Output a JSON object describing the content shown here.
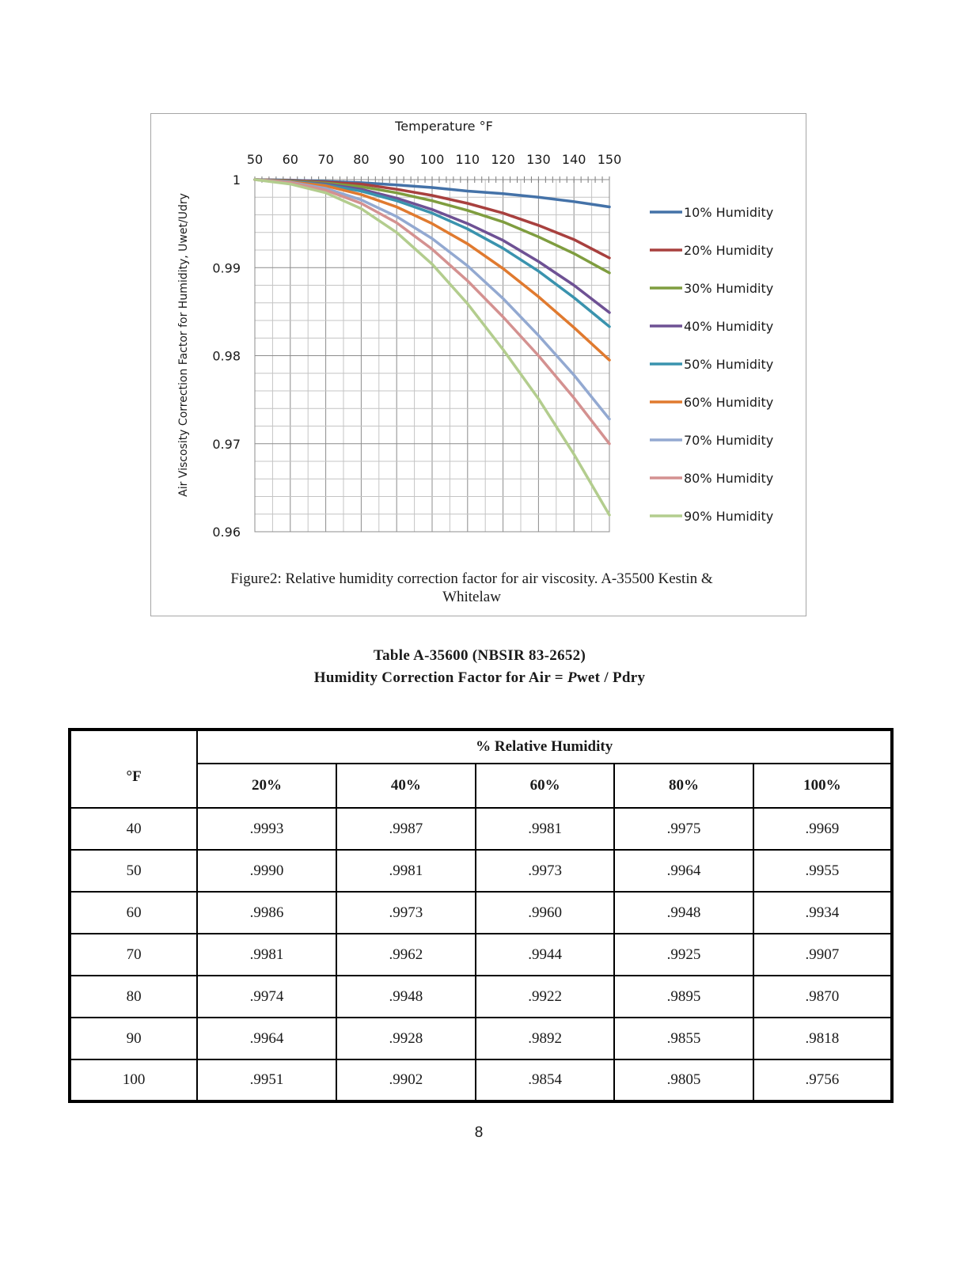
{
  "figure": {
    "caption_line1": "Figure2: Relative humidity correction factor for air viscosity.  A-35500 Kestin &",
    "caption_line2": "Whitelaw"
  },
  "chart_data": {
    "type": "line",
    "title": "",
    "xlabel": "Temperature °F",
    "ylabel": "Air Viscosity Correction Factor for Humidity, Uwet/Udry",
    "x_axis_position": "top",
    "xlim": [
      50,
      150
    ],
    "ylim": [
      0.96,
      1
    ],
    "x_ticks": [
      "50",
      "60",
      "70",
      "80",
      "90",
      "100",
      "110",
      "120",
      "130",
      "140",
      "150"
    ],
    "y_ticks": [
      "1",
      "0.99",
      "0.98",
      "0.97",
      "0.96"
    ],
    "grid": true,
    "legend_position": "right",
    "x": [
      50,
      60,
      70,
      80,
      90,
      100,
      110,
      120,
      130,
      140,
      150
    ],
    "series": [
      {
        "name": "10% Humidity",
        "color": "#4472a8",
        "values": [
          1.0,
          0.99995,
          0.9998,
          0.99965,
          0.9994,
          0.9991,
          0.9987,
          0.9984,
          0.998,
          0.9975,
          0.9969
        ]
      },
      {
        "name": "20% Humidity",
        "color": "#a8403e",
        "values": [
          1.0,
          0.9999,
          0.9997,
          0.9995,
          0.9989,
          0.9982,
          0.9973,
          0.9962,
          0.9948,
          0.9932,
          0.9911
        ]
      },
      {
        "name": "30% Humidity",
        "color": "#7f9d3f",
        "values": [
          1.0,
          0.99985,
          0.9996,
          0.9992,
          0.9985,
          0.9976,
          0.9965,
          0.9952,
          0.9935,
          0.9916,
          0.9894
        ]
      },
      {
        "name": "40% Humidity",
        "color": "#6e5194",
        "values": [
          1.0,
          0.9998,
          0.9995,
          0.9989,
          0.9979,
          0.9966,
          0.995,
          0.9931,
          0.9907,
          0.988,
          0.9849
        ]
      },
      {
        "name": "50% Humidity",
        "color": "#3a93ae",
        "values": [
          1.0,
          0.9998,
          0.9994,
          0.9987,
          0.9976,
          0.9962,
          0.9944,
          0.9922,
          0.9896,
          0.9866,
          0.9833
        ]
      },
      {
        "name": "60% Humidity",
        "color": "#e07a2f",
        "values": [
          1.0,
          0.99975,
          0.9993,
          0.9983,
          0.9969,
          0.995,
          0.9927,
          0.9899,
          0.9867,
          0.9832,
          0.9795
        ]
      },
      {
        "name": "70% Humidity",
        "color": "#93a9d1",
        "values": [
          1.0,
          0.9997,
          0.999,
          0.9977,
          0.9958,
          0.9933,
          0.9902,
          0.9865,
          0.9823,
          0.9778,
          0.9728
        ]
      },
      {
        "name": "80% Humidity",
        "color": "#d49190",
        "values": [
          1.0,
          0.99965,
          0.9988,
          0.9973,
          0.9951,
          0.9921,
          0.9885,
          0.9844,
          0.98,
          0.9752,
          0.97
        ]
      },
      {
        "name": "90% Humidity",
        "color": "#b3cd8e",
        "values": [
          1.0,
          0.9995,
          0.9985,
          0.9967,
          0.994,
          0.9904,
          0.9859,
          0.9807,
          0.9751,
          0.9688,
          0.9619
        ]
      }
    ]
  },
  "table": {
    "title_line1": "Table A-35600 (NBSIR 83-2652)",
    "title_line2_prefix": "Humidity Correction Factor for Air = ",
    "title_line2_italic": "P",
    "title_line2_suffix": "wet / Pdry",
    "group_header": "% Relative Humidity",
    "row_header": "°F",
    "columns": [
      "20%",
      "40%",
      "60%",
      "80%",
      "100%"
    ],
    "rows": [
      {
        "temp": "40",
        "values": [
          ".9993",
          ".9987",
          ".9981",
          ".9975",
          ".9969"
        ]
      },
      {
        "temp": "50",
        "values": [
          ".9990",
          ".9981",
          ".9973",
          ".9964",
          ".9955"
        ]
      },
      {
        "temp": "60",
        "values": [
          ".9986",
          ".9973",
          ".9960",
          ".9948",
          ".9934"
        ]
      },
      {
        "temp": "70",
        "values": [
          ".9981",
          ".9962",
          ".9944",
          ".9925",
          ".9907"
        ]
      },
      {
        "temp": "80",
        "values": [
          ".9974",
          ".9948",
          ".9922",
          ".9895",
          ".9870"
        ]
      },
      {
        "temp": "90",
        "values": [
          ".9964",
          ".9928",
          ".9892",
          ".9855",
          ".9818"
        ]
      },
      {
        "temp": "100",
        "values": [
          ".9951",
          ".9902",
          ".9854",
          ".9805",
          ".9756"
        ]
      }
    ]
  },
  "page_number": "8"
}
